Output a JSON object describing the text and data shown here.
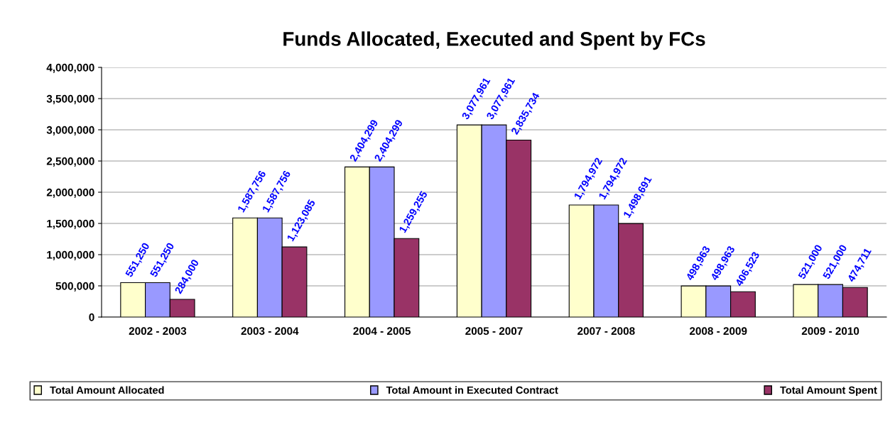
{
  "chart_data": {
    "type": "bar",
    "title": "Funds Allocated, Executed and Spent by FCs",
    "categories": [
      "2002 - 2003",
      "2003 - 2004",
      "2004 - 2005",
      "2005 - 2007",
      "2007 - 2008",
      "2008 - 2009",
      "2009 - 2010"
    ],
    "series": [
      {
        "name": "Total Amount Allocated",
        "color": "#ffffcc",
        "values": [
          551250,
          1587756,
          2404299,
          3077961,
          1794972,
          498963,
          521000
        ],
        "value_labels": [
          "551,250",
          "1,587,756",
          "2,404,299",
          "3,077,961",
          "1,794,972",
          "498,963",
          "521,000"
        ]
      },
      {
        "name": "Total Amount in Executed Contract",
        "color": "#9999ff",
        "values": [
          551250,
          1587756,
          2404299,
          3077961,
          1794972,
          498963,
          521000
        ],
        "value_labels": [
          "551,250",
          "1,587,756",
          "2,404,299",
          "3,077,961",
          "1,794,972",
          "498,963",
          "521,000"
        ]
      },
      {
        "name": "Total Amount Spent",
        "color": "#993366",
        "values": [
          284000,
          1123085,
          1259255,
          2835734,
          1498691,
          406523,
          474711
        ],
        "value_labels": [
          "284,000",
          "1,123,085",
          "1,259,255",
          "2,835,734",
          "1,498,691",
          "406,523",
          "474,711"
        ]
      }
    ],
    "ylim": [
      0,
      4000000
    ],
    "yticks": [
      {
        "value": 0,
        "label": "0"
      },
      {
        "value": 500000,
        "label": "500,000"
      },
      {
        "value": 1000000,
        "label": "1,000,000"
      },
      {
        "value": 1500000,
        "label": "1,500,000"
      },
      {
        "value": 2000000,
        "label": "2,000,000"
      },
      {
        "value": 2500000,
        "label": "2,500,000"
      },
      {
        "value": 3000000,
        "label": "3,000,000"
      },
      {
        "value": 3500000,
        "label": "3,500,000"
      },
      {
        "value": 4000000,
        "label": "4,000,000"
      }
    ],
    "grid": "y",
    "legend": "bottom"
  }
}
